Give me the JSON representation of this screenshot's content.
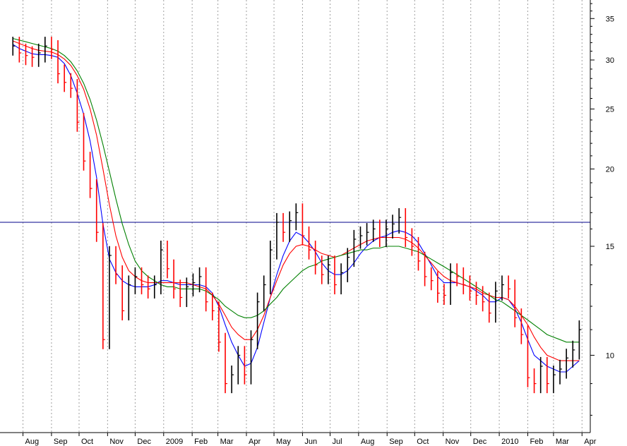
{
  "chart_data": {
    "type": "line",
    "title": "",
    "xlabel": "",
    "ylabel": "",
    "y_scale": "log",
    "ylim": [
      7.5,
      37.5
    ],
    "yticks": [
      10,
      15,
      20,
      25,
      30,
      35
    ],
    "grid": "vertical dotted lines at month boundaries",
    "x_month_labels": [
      "Aug",
      "Sep",
      "Oct",
      "Nov",
      "Dec",
      "2009",
      "Feb",
      "Mar",
      "Apr",
      "May",
      "Jun",
      "Jul",
      "Aug",
      "Sep",
      "Oct",
      "Nov",
      "Dec",
      "2010",
      "Feb",
      "Mar",
      "Apr"
    ],
    "reference_line": {
      "value": 16.4,
      "color": "#00008b"
    },
    "colors": {
      "up": "#000000",
      "down": "#ff0000",
      "ma_short": "#0000ff",
      "ma_mid": "#ff0000",
      "ma_long": "#008000",
      "ref": "#00008b"
    },
    "series": [
      {
        "type": "candles",
        "x": [
          "2008-07-21",
          "2008-07-28",
          "2008-08-04",
          "2008-08-11",
          "2008-08-18",
          "2008-08-25",
          "2008-09-01",
          "2008-09-08",
          "2008-09-15",
          "2008-09-22",
          "2008-09-29",
          "2008-10-06",
          "2008-10-13",
          "2008-10-20",
          "2008-10-27",
          "2008-11-03",
          "2008-11-10",
          "2008-11-17",
          "2008-11-24",
          "2008-12-01",
          "2008-12-08",
          "2008-12-15",
          "2008-12-22",
          "2008-12-29",
          "2009-01-05",
          "2009-01-12",
          "2009-01-19",
          "2009-01-26",
          "2009-02-02",
          "2009-02-09",
          "2009-02-16",
          "2009-02-23",
          "2009-03-02",
          "2009-03-09",
          "2009-03-16",
          "2009-03-23",
          "2009-03-30",
          "2009-04-06",
          "2009-04-13",
          "2009-04-20",
          "2009-04-27",
          "2009-05-04",
          "2009-05-11",
          "2009-05-18",
          "2009-05-25",
          "2009-06-01",
          "2009-06-08",
          "2009-06-15",
          "2009-06-22",
          "2009-06-29",
          "2009-07-06",
          "2009-07-13",
          "2009-07-20",
          "2009-07-27",
          "2009-08-03",
          "2009-08-10",
          "2009-08-17",
          "2009-08-24",
          "2009-08-31",
          "2009-09-07",
          "2009-09-14",
          "2009-09-21",
          "2009-09-28",
          "2009-10-05",
          "2009-10-12",
          "2009-10-19",
          "2009-10-26",
          "2009-11-02",
          "2009-11-09",
          "2009-11-16",
          "2009-11-23",
          "2009-11-30",
          "2009-12-07",
          "2009-12-14",
          "2009-12-21",
          "2009-12-28",
          "2010-01-04",
          "2010-01-11",
          "2010-01-18",
          "2010-01-25",
          "2010-02-01",
          "2010-02-08",
          "2010-02-15",
          "2010-02-22",
          "2010-03-01",
          "2010-03-08",
          "2010-03-15",
          "2010-03-22",
          "2010-03-29"
        ],
        "close": [
          31.6,
          30.8,
          30.5,
          30.3,
          30.8,
          31.6,
          31.2,
          28.5,
          27.6,
          27.0,
          23.8,
          20.6,
          18.6,
          15.8,
          10.6,
          14.5,
          13.5,
          11.8,
          13.0,
          13.4,
          13.0,
          12.8,
          13.0,
          14.8,
          13.8,
          12.8,
          12.4,
          12.9,
          13.1,
          13.4,
          12.2,
          11.8,
          10.5,
          9.0,
          9.3,
          10.0,
          9.3,
          10.6,
          12.2,
          13.0,
          14.8,
          16.4,
          15.8,
          16.5,
          17.0,
          15.6,
          14.8,
          14.0,
          13.5,
          14.0,
          13.0,
          13.6,
          14.4,
          15.4,
          15.6,
          15.8,
          16.0,
          15.5,
          16.0,
          16.3,
          16.7,
          15.5,
          15.0,
          14.2,
          13.4,
          13.2,
          12.6,
          12.5,
          13.6,
          13.4,
          13.0,
          12.7,
          12.5,
          12.2,
          11.7,
          12.7,
          13.0,
          12.8,
          11.5,
          10.8,
          9.2,
          9.0,
          9.6,
          9.0,
          9.3,
          9.5,
          9.9,
          10.2,
          11.0
        ]
      },
      {
        "name": "",
        "type": "moving_average",
        "color": "#0000ff",
        "values": [
          31.8,
          31.3,
          31.0,
          30.7,
          30.6,
          30.6,
          30.5,
          30.3,
          29.6,
          28.3,
          26.5,
          24.5,
          22.2,
          19.4,
          16.3,
          14.3,
          13.6,
          13.2,
          13.0,
          12.9,
          12.9,
          12.9,
          13.0,
          13.2,
          13.2,
          13.1,
          13.0,
          13.0,
          13.0,
          13.0,
          12.9,
          12.6,
          12.0,
          11.2,
          10.5,
          10.0,
          9.6,
          9.7,
          10.3,
          11.3,
          12.4,
          13.5,
          14.5,
          15.3,
          15.8,
          15.6,
          15.2,
          14.7,
          14.1,
          13.7,
          13.5,
          13.5,
          13.7,
          14.1,
          14.6,
          15.0,
          15.3,
          15.5,
          15.6,
          15.8,
          15.9,
          15.8,
          15.6,
          15.2,
          14.6,
          14.0,
          13.4,
          13.1,
          13.1,
          13.1,
          13.0,
          12.9,
          12.7,
          12.5,
          12.2,
          12.2,
          12.4,
          12.3,
          11.9,
          11.3,
          10.6,
          10.0,
          9.8,
          9.6,
          9.5,
          9.4,
          9.4,
          9.6,
          9.8
        ]
      },
      {
        "name": "",
        "type": "moving_average",
        "color": "#ff0000",
        "values": [
          32.2,
          31.9,
          31.6,
          31.3,
          31.1,
          31.0,
          30.9,
          30.6,
          30.1,
          29.4,
          28.3,
          26.9,
          25.0,
          22.7,
          20.0,
          17.5,
          15.6,
          14.4,
          13.7,
          13.4,
          13.2,
          13.1,
          13.1,
          13.1,
          13.1,
          13.1,
          13.1,
          13.1,
          13.0,
          12.9,
          12.8,
          12.5,
          12.1,
          11.6,
          11.1,
          10.8,
          10.6,
          10.6,
          11.0,
          11.6,
          12.4,
          13.2,
          14.0,
          14.6,
          15.0,
          15.1,
          15.0,
          14.8,
          14.6,
          14.5,
          14.4,
          14.5,
          14.7,
          14.9,
          15.1,
          15.3,
          15.4,
          15.5,
          15.5,
          15.5,
          15.5,
          15.4,
          15.2,
          14.9,
          14.5,
          14.1,
          13.7,
          13.4,
          13.2,
          13.1,
          13.0,
          12.9,
          12.8,
          12.6,
          12.5,
          12.4,
          12.4,
          12.3,
          12.0,
          11.6,
          11.2,
          10.7,
          10.3,
          10.0,
          9.9,
          9.8,
          9.8,
          9.8,
          9.8
        ]
      },
      {
        "name": "",
        "type": "moving_average",
        "color": "#008000",
        "values": [
          32.5,
          32.3,
          32.1,
          31.9,
          31.7,
          31.5,
          31.3,
          31.0,
          30.5,
          29.8,
          28.8,
          27.5,
          25.9,
          24.0,
          21.9,
          19.8,
          17.9,
          16.3,
          15.1,
          14.2,
          13.7,
          13.4,
          13.2,
          13.0,
          12.9,
          12.9,
          12.8,
          12.8,
          12.8,
          12.8,
          12.7,
          12.5,
          12.3,
          12.0,
          11.8,
          11.6,
          11.5,
          11.5,
          11.6,
          11.8,
          12.1,
          12.4,
          12.8,
          13.1,
          13.4,
          13.7,
          13.9,
          14.0,
          14.2,
          14.3,
          14.4,
          14.5,
          14.6,
          14.7,
          14.8,
          14.8,
          14.9,
          14.9,
          15.0,
          15.0,
          15.0,
          14.9,
          14.8,
          14.7,
          14.5,
          14.3,
          14.1,
          13.9,
          13.7,
          13.5,
          13.3,
          13.1,
          12.9,
          12.7,
          12.5,
          12.3,
          12.2,
          12.0,
          11.8,
          11.6,
          11.4,
          11.2,
          11.0,
          10.8,
          10.7,
          10.6,
          10.5,
          10.5,
          10.5
        ]
      }
    ]
  }
}
